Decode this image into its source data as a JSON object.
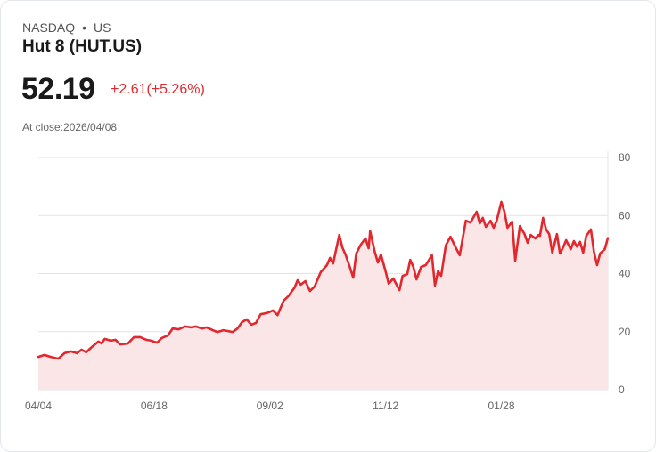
{
  "header": {
    "exchange": "NASDAQ",
    "dot": "•",
    "country": "US",
    "title": "Hut 8 (HUT.US)",
    "price": "52.19",
    "change": "+2.61(+5.26%)",
    "close_label": "At close:2026/04/08"
  },
  "colors": {
    "line": "#e0282e",
    "fill": "#fae6e6",
    "grid": "#e4e4e4"
  },
  "chart_data": {
    "type": "area",
    "title": "Hut 8 (HUT.US)",
    "xlabel": "",
    "ylabel": "",
    "ylim": [
      0,
      80
    ],
    "yticks": [
      0,
      20,
      40,
      60,
      80
    ],
    "xlim": [
      0,
      369
    ],
    "xticks": [
      {
        "x": 0,
        "label": "04/04"
      },
      {
        "x": 75,
        "label": "06/18"
      },
      {
        "x": 150,
        "label": "09/02"
      },
      {
        "x": 225,
        "label": "11/12"
      },
      {
        "x": 300,
        "label": "01/28"
      }
    ],
    "grid": true,
    "x": [
      0,
      4,
      8,
      13,
      17,
      21,
      25,
      28,
      31,
      34,
      39,
      41,
      43,
      47,
      50,
      53,
      58,
      62,
      66,
      70,
      73,
      77,
      80,
      84,
      87,
      91,
      95,
      99,
      102,
      106,
      109,
      113,
      116,
      120,
      123,
      126,
      129,
      132,
      135,
      138,
      141,
      144,
      148,
      152,
      155,
      159,
      162,
      166,
      168,
      170,
      173,
      176,
      179,
      183,
      187,
      189,
      191,
      193,
      195,
      197,
      199,
      202,
      204,
      206,
      209,
      212,
      214,
      215,
      218,
      220,
      222,
      225,
      227,
      230,
      234,
      236,
      239,
      241,
      243,
      245,
      248,
      251,
      255,
      257,
      259,
      261,
      264,
      267,
      271,
      273,
      277,
      280,
      284,
      286,
      288,
      290,
      293,
      295,
      297,
      300,
      302,
      304,
      307,
      309,
      312,
      315,
      317,
      319,
      322,
      324,
      325,
      327,
      329,
      331,
      333,
      336,
      338,
      340,
      342,
      345,
      347,
      349,
      351,
      353,
      355,
      358,
      360,
      362,
      364,
      367,
      369
    ],
    "y": [
      11.3,
      12,
      11.3,
      10.7,
      12.6,
      13.2,
      12.6,
      13.8,
      12.9,
      14.4,
      16.6,
      15.9,
      17.5,
      16.9,
      17.2,
      15.6,
      15.9,
      18.1,
      18.1,
      17.2,
      16.9,
      16.2,
      17.8,
      18.7,
      21.1,
      20.8,
      21.8,
      21.5,
      21.8,
      21.1,
      21.5,
      20.5,
      19.9,
      20.5,
      20.2,
      19.9,
      21.1,
      23.3,
      24.2,
      22.4,
      23,
      26,
      26.4,
      27.3,
      25.7,
      30.7,
      32.2,
      35.2,
      37.7,
      36.2,
      37.4,
      34,
      35.6,
      40.5,
      42.9,
      45.4,
      43.5,
      48.4,
      53.3,
      49,
      46.6,
      42,
      38.6,
      46.9,
      50,
      52.1,
      48.7,
      54.6,
      47.5,
      43.8,
      46.6,
      40.8,
      36.5,
      38.3,
      34.3,
      39.2,
      39.8,
      44.7,
      42.3,
      38,
      42.3,
      42.9,
      46.3,
      35.9,
      40.8,
      39.2,
      49.7,
      52.7,
      48.4,
      46.3,
      58.2,
      57.6,
      61.3,
      57.3,
      59.2,
      56.1,
      58.2,
      55.8,
      58.2,
      64.7,
      61.3,
      55.8,
      57.9,
      44.4,
      56.4,
      53.6,
      50.6,
      53.3,
      52.1,
      53.3,
      53,
      59.2,
      55.2,
      53.6,
      47.2,
      53.6,
      46.9,
      49,
      51.5,
      48.4,
      51.2,
      49.3,
      50.9,
      47.2,
      53,
      55.2,
      47.5,
      42.9,
      46.9,
      48.4,
      52.19
    ]
  }
}
